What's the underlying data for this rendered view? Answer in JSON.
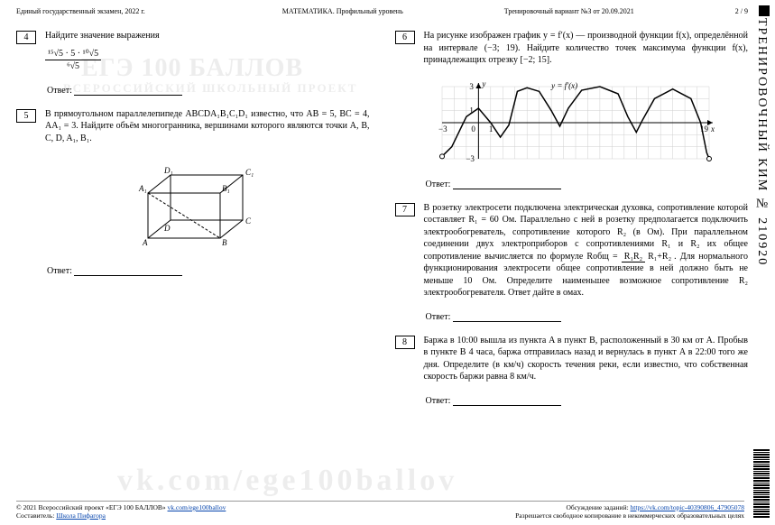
{
  "header": {
    "left": "Единый государственный экзамен, 2022 г.",
    "mid": "МАТЕМАТИКА. Профильный уровень",
    "right": "Тренировочный вариант №3 от 20.09.2021",
    "page": "2 / 9"
  },
  "sidebar_text": "ТРЕНИРОВОЧНЫЙ КИМ № 210920",
  "problems": {
    "p4": {
      "num": "4",
      "title": "Найдите значение выражения",
      "frac_top": "¹⁵√5 · 5 · ¹⁰√5",
      "frac_bot": "⁶√5"
    },
    "p5": {
      "num": "5",
      "text": "В прямоугольном параллелепипеде ABCDA₁B₁C₁D₁ известно, что AB = 5, BC = 4, AA₁ = 3. Найдите объём многогранника, вершинами которого являются точки A, B, C, D, A₁, B₁."
    },
    "p6": {
      "num": "6",
      "text": "На рисунке изображен график y = f′(x) — производной функции f(x), определённой на интервале (−3; 19). Найдите количество точек максимума функции f(x), принадлежащих отрезку [−2; 15].",
      "chart": {
        "type": "line",
        "xlim": [
          -3,
          19
        ],
        "ylim": [
          -3,
          3
        ],
        "axis_label_y": "y",
        "axis_label_x": "x",
        "curve_label": "y = f′(x)",
        "grid_color": "#cfcfcf",
        "axis_color": "#000000",
        "line_color": "#000000",
        "line_width": 1.5,
        "fontsize": 9,
        "points": [
          [
            -3,
            -2.8
          ],
          [
            -2.2,
            -2
          ],
          [
            -1,
            0.5
          ],
          [
            0,
            1.2
          ],
          [
            1,
            0
          ],
          [
            1.8,
            -1.2
          ],
          [
            2.5,
            -0.2
          ],
          [
            3.2,
            2.6
          ],
          [
            4,
            2.9
          ],
          [
            5,
            2.6
          ],
          [
            6,
            1
          ],
          [
            6.7,
            -0.3
          ],
          [
            7.4,
            1.2
          ],
          [
            8.5,
            2.7
          ],
          [
            10,
            3
          ],
          [
            11.5,
            2.4
          ],
          [
            12.3,
            0.5
          ],
          [
            13,
            -0.8
          ],
          [
            13.5,
            0.2
          ],
          [
            14.5,
            2
          ],
          [
            16,
            2.8
          ],
          [
            17.5,
            2
          ],
          [
            18.3,
            0
          ],
          [
            18.8,
            -2.5
          ],
          [
            19,
            -3
          ]
        ],
        "endpoints_open": true
      }
    },
    "p7": {
      "num": "7",
      "text": "В розетку электросети подключена электрическая духовка, сопротивление которой составляет R₁ = 60 Ом. Параллельно с ней в розетку предполагается подключить электрообогреватель, сопротивление которого R₂ (в Ом). При параллельном соединении двух электроприборов с сопротивлениями R₁ и R₂ их общее сопротивление вычисляется по формуле ",
      "formula_top": "R₁R₂",
      "formula_bot": "R₁+R₂",
      "formula_lhs": "Rобщ = ",
      "text2": ". Для нормального функционирования электросети общее сопротивление в ней должно быть не меньше 10 Ом. Определите наименьшее возможное сопротивление R₂ электрообогревателя. Ответ дайте в омах."
    },
    "p8": {
      "num": "8",
      "text": "Баржа в 10:00 вышла из пункта A в пункт B, расположенный в 30 км от A. Пробыв в пункте B 4 часа, баржа отправилась назад и вернулась в пункт A в 22:00 того же дня. Определите (в км/ч) скорость течения реки, если известно, что собственная скорость баржи равна 8 км/ч."
    }
  },
  "answer_label": "Ответ:",
  "footer": {
    "left1": "© 2021 Всероссийский проект «ЕГЭ 100 БАЛЛОВ» ",
    "left_link": "vk.com/ege100ballov",
    "left2": "Составитель: ",
    "left2_link": "Школа Пифагора",
    "right1": "Обсуждение заданий: ",
    "right_link": "https://vk.com/topic-40390806_47905078",
    "right2": "Разрешается свободное копирование в некоммерческих образовательных целях"
  },
  "watermarks": {
    "a": "ЕГЭ 100 БАЛЛОВ",
    "b": "ВСЕРОССИЙСКИЙ ШКОЛЬНЫЙ ПРОЕКТ",
    "c": "vk.com/ege100ballov"
  }
}
